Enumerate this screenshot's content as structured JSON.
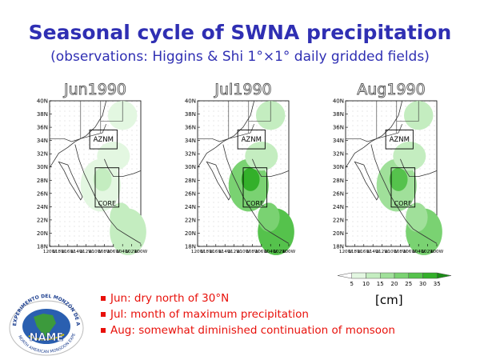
{
  "title": "Seasonal cycle of SWNA precipitation",
  "subtitle": "(observations: Higgins & Shi 1°×1° daily gridded fields)",
  "maps": [
    {
      "label": "Jun1990",
      "level": 0.25
    },
    {
      "label": "Jul1990",
      "level": 1.0
    },
    {
      "label": "Aug1990",
      "level": 0.7
    }
  ],
  "lat_ticks": [
    "40N",
    "38N",
    "36N",
    "34N",
    "32N",
    "30N",
    "28N",
    "26N",
    "24N",
    "22N",
    "20N",
    "18N"
  ],
  "lon_ticks": [
    "120W",
    "118W",
    "116W",
    "114W",
    "112W",
    "110W",
    "108W",
    "106W",
    "104W",
    "102W",
    "100W"
  ],
  "regions": {
    "north": "AZNM",
    "south": "CORE"
  },
  "colorbar": {
    "ticks": [
      "5",
      "10",
      "15",
      "20",
      "25",
      "30",
      "35"
    ],
    "colors": [
      "#ffffff",
      "#e3f7e1",
      "#c4edc0",
      "#a0e09a",
      "#7ad272",
      "#55c24c",
      "#33b02a",
      "#1a8c16"
    ],
    "unit": "[cm]"
  },
  "bullets": [
    "Jun: dry north of 30°N",
    "Jul: month of maximum precipitation",
    "Aug: somewhat diminished continuation of monsoon"
  ],
  "logo": {
    "arc_text": "EXPERIMENTO DEL MONZÓN DE AMÉRICA DEL NORTE",
    "center_text": "NAME",
    "sub_text": "NORTH AMERICAN MONSOON EXPERIMENT"
  },
  "colors": {
    "title": "#2f2fb3",
    "bullet": "#e8100a",
    "coast": "#333333"
  }
}
